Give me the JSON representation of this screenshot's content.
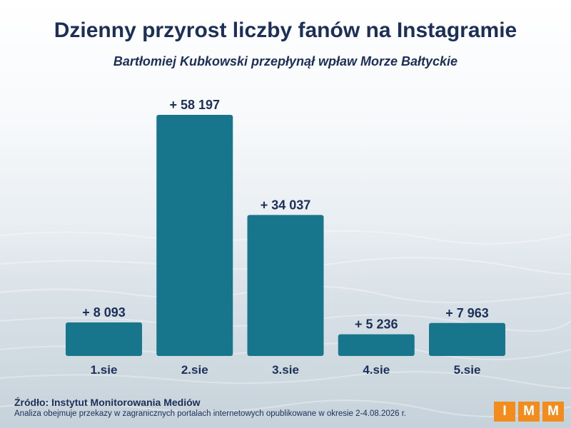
{
  "header": {
    "title": "Dzienny przyrost liczby fanów na Instagramie",
    "subtitle": "Bartłomiej Kubkowski przepłynął wpław Morze Bałtyckie"
  },
  "chart_data": {
    "type": "bar",
    "title": "Dzienny przyrost liczby fanów na Instagramie",
    "subtitle": "Bartłomiej Kubkowski przepłynął wpław Morze Bałtyckie",
    "categories": [
      "1.sie",
      "2.sie",
      "3.sie",
      "4.sie",
      "5.sie"
    ],
    "values": [
      8093,
      58197,
      34037,
      5236,
      7963
    ],
    "data_labels": [
      "+ 8 093",
      "+ 58 197",
      "+ 34 037",
      "+ 5 236",
      "+ 7 963"
    ],
    "xlabel": "",
    "ylabel": "",
    "ylim": [
      0,
      60000
    ],
    "grid": false,
    "bar_color": "#17768c"
  },
  "footer": {
    "source": "Źródło: Instytut Monitorowania Mediów",
    "note": "Analiza obejmuje przekazy w zagranicznych portalach internetowych opublikowane w okresie 2-4.08.2026 r.",
    "logo_letters": [
      "I",
      "M",
      "M"
    ],
    "logo_color": "#f28c1c"
  },
  "colors": {
    "title": "#1c2f57",
    "bar": "#17768c"
  }
}
